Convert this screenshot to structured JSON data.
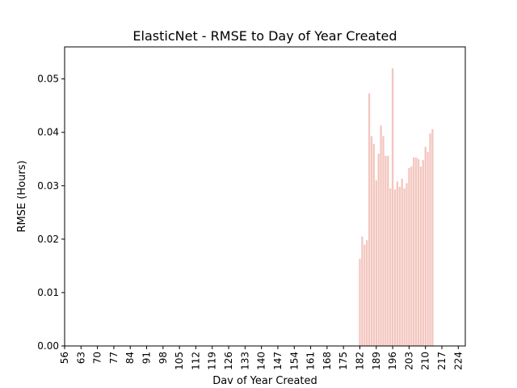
{
  "chart_data": {
    "type": "bar",
    "title": "ElasticNet - RMSE to Day of Year Created",
    "xlabel": "Dav of Year Created",
    "ylabel": "RMSE (Hours)",
    "xlim": [
      56,
      227
    ],
    "ylim": [
      0,
      0.056
    ],
    "grid": false,
    "bar_color": "#f4c6c0",
    "x_ticks": [
      "56",
      "63",
      "70",
      "77",
      "84",
      "91",
      "98",
      "105",
      "112",
      "119",
      "126",
      "133",
      "140",
      "147",
      "154",
      "161",
      "168",
      "175",
      "182",
      "189",
      "196",
      "203",
      "210",
      "217",
      "224"
    ],
    "y_ticks": [
      "0.00",
      "0.01",
      "0.02",
      "0.03",
      "0.04",
      "0.05"
    ],
    "x": [
      182,
      183,
      184,
      185,
      186,
      187,
      188,
      189,
      190,
      191,
      192,
      193,
      194,
      195,
      196,
      197,
      198,
      199,
      200,
      201,
      202,
      203,
      204,
      205,
      206,
      207,
      208,
      209,
      210,
      211,
      212,
      213
    ],
    "values": [
      0.0163,
      0.0205,
      0.019,
      0.0198,
      0.0473,
      0.0393,
      0.0378,
      0.031,
      0.036,
      0.0413,
      0.0393,
      0.0356,
      0.0356,
      0.0295,
      0.052,
      0.0293,
      0.0308,
      0.0298,
      0.0313,
      0.0295,
      0.0305,
      0.0333,
      0.0336,
      0.0353,
      0.0353,
      0.035,
      0.0336,
      0.0348,
      0.0373,
      0.0363,
      0.0398,
      0.0406
    ]
  }
}
